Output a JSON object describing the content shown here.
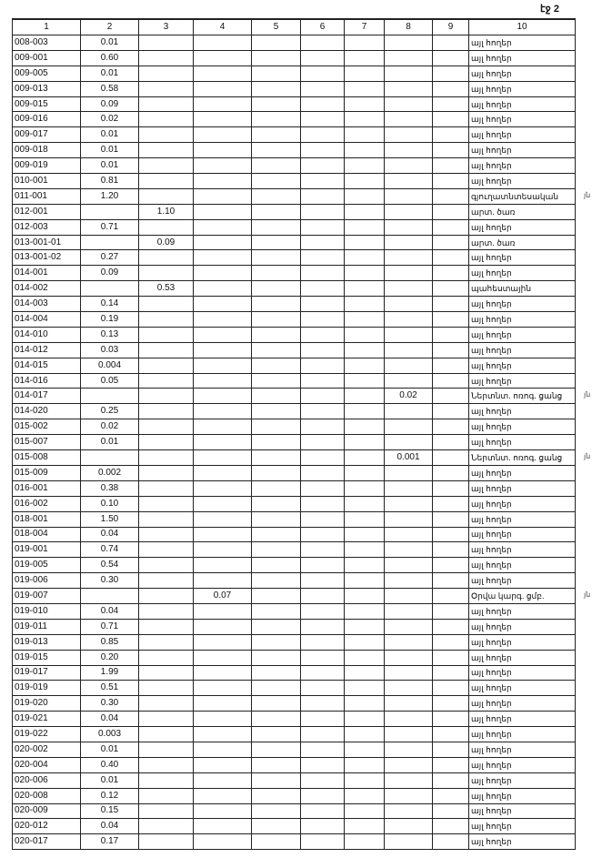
{
  "page_label": "էջ 2",
  "columns": [
    "1",
    "2",
    "3",
    "4",
    "5",
    "6",
    "7",
    "8",
    "9",
    "10"
  ],
  "rows": [
    {
      "c1": "008-003",
      "c2": "0.01",
      "c10": "այլ հողեր"
    },
    {
      "c1": "009-001",
      "c2": "0.60",
      "c10": "այլ հողեր"
    },
    {
      "c1": "009-005",
      "c2": "0.01",
      "c10": "այլ հողեր"
    },
    {
      "c1": "009-013",
      "c2": "0.58",
      "c10": "այլ հողեր"
    },
    {
      "c1": "009-015",
      "c2": "0.09",
      "c10": "այլ հողեր"
    },
    {
      "c1": "009-016",
      "c2": "0.02",
      "c10": "այլ հողեր"
    },
    {
      "c1": "009-017",
      "c2": "0.01",
      "c10": "այլ հողեր"
    },
    {
      "c1": "009-018",
      "c2": "0.01",
      "c10": "այլ հողեր"
    },
    {
      "c1": "009-019",
      "c2": "0.01",
      "c10": "այլ հողեր"
    },
    {
      "c1": "010-001",
      "c2": "0.81",
      "c10": "այլ հողեր"
    },
    {
      "c1": "011-001",
      "c2": "1.20",
      "c10": "գյուղատնտեսական",
      "note": "յն"
    },
    {
      "c1": "012-001",
      "c3": "1.10",
      "c10": "արտ. ծառ"
    },
    {
      "c1": "012-003",
      "c2": "0.71",
      "c10": "այլ հողեր"
    },
    {
      "c1": "013-001-01",
      "c3": "0.09",
      "c10": "արտ. ծառ"
    },
    {
      "c1": "013-001-02",
      "c2": "0.27",
      "c10": "այլ հողեր"
    },
    {
      "c1": "014-001",
      "c2": "0.09",
      "c10": "այլ հողեր"
    },
    {
      "c1": "014-002",
      "c3": "0.53",
      "c10": "պահեստային"
    },
    {
      "c1": "014-003",
      "c2": "0.14",
      "c10": "այլ հողեր"
    },
    {
      "c1": "014-004",
      "c2": "0.19",
      "c10": "այլ հողեր"
    },
    {
      "c1": "014-010",
      "c2": "0.13",
      "c10": "այլ հողեր"
    },
    {
      "c1": "014-012",
      "c2": "0.03",
      "c10": "այլ հողեր"
    },
    {
      "c1": "014-015",
      "c2": "0.004",
      "c10": "այլ հողեր"
    },
    {
      "c1": "014-016",
      "c2": "0.05",
      "c10": "այլ հողեր"
    },
    {
      "c1": "014-017",
      "c8": "0.02",
      "c10": "Ներտնտ. ոռոգ. ցանց",
      "note": "յն"
    },
    {
      "c1": "014-020",
      "c2": "0.25",
      "c10": "այլ հողեր"
    },
    {
      "c1": "015-002",
      "c2": "0.02",
      "c10": "այլ հողեր"
    },
    {
      "c1": "015-007",
      "c2": "0.01",
      "c10": "այլ հողեր"
    },
    {
      "c1": "015-008",
      "c8": "0.001",
      "c10": "Ներտնտ. ոռոգ. ցանց",
      "note": "յն"
    },
    {
      "c1": "015-009",
      "c2": "0.002",
      "c10": "այլ հողեր"
    },
    {
      "c1": "016-001",
      "c2": "0.38",
      "c10": "այլ հողեր"
    },
    {
      "c1": "016-002",
      "c2": "0.10",
      "c10": "այլ հողեր"
    },
    {
      "c1": "018-001",
      "c2": "1.50",
      "c10": "այլ հողեր"
    },
    {
      "c1": "018-004",
      "c2": "0.04",
      "c10": "այլ հողեր"
    },
    {
      "c1": "019-001",
      "c2": "0.74",
      "c10": "այլ հողեր"
    },
    {
      "c1": "019-005",
      "c2": "0.54",
      "c10": "այլ հողեր"
    },
    {
      "c1": "019-006",
      "c2": "0.30",
      "c10": "այլ հողեր"
    },
    {
      "c1": "019-007",
      "c4": "0.07",
      "c10": "Օրվա կարգ. ցմբ.",
      "note": "յն"
    },
    {
      "c1": "019-010",
      "c2": "0.04",
      "c10": "այլ հողեր"
    },
    {
      "c1": "019-011",
      "c2": "0.71",
      "c10": "այլ հողեր"
    },
    {
      "c1": "019-013",
      "c2": "0.85",
      "c10": "այլ հողեր"
    },
    {
      "c1": "019-015",
      "c2": "0.20",
      "c10": "այլ հողեր"
    },
    {
      "c1": "019-017",
      "c2": "1.99",
      "c10": "այլ հողեր"
    },
    {
      "c1": "019-019",
      "c2": "0.51",
      "c10": "այլ հողեր"
    },
    {
      "c1": "019-020",
      "c2": "0.30",
      "c10": "այլ հողեր"
    },
    {
      "c1": "019-021",
      "c2": "0.04",
      "c10": "այլ հողեր"
    },
    {
      "c1": "019-022",
      "c2": "0.003",
      "c10": "այլ հողեր"
    },
    {
      "c1": "020-002",
      "c2": "0.01",
      "c10": "այլ հողեր"
    },
    {
      "c1": "020-004",
      "c2": "0.40",
      "c10": "այլ հողեր"
    },
    {
      "c1": "020-006",
      "c2": "0.01",
      "c10": "այլ հողեր"
    },
    {
      "c1": "020-008",
      "c2": "0.12",
      "c10": "այլ հողեր"
    },
    {
      "c1": "020-009",
      "c2": "0.15",
      "c10": "այլ հողեր"
    },
    {
      "c1": "020-012",
      "c2": "0.04",
      "c10": "այլ հողեր"
    },
    {
      "c1": "020-017",
      "c2": "0.17",
      "c10": "այլ հողեր"
    }
  ]
}
